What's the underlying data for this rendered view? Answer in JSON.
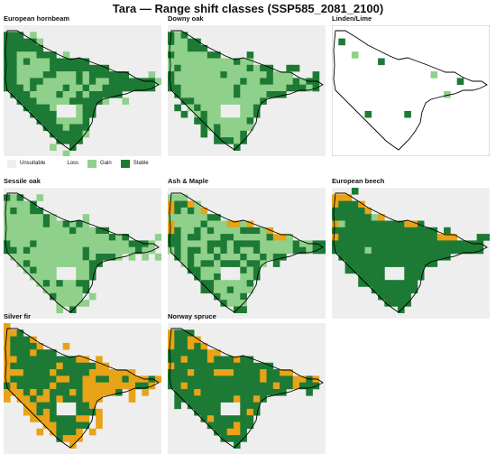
{
  "title": "Tara — Range shift classes (SSP585_2081_2100)",
  "colors": {
    "unsuitable": "#eeeeee",
    "loss": "#e8a317",
    "gain": "#8fd08a",
    "stable": "#1d7a35",
    "border": "#000000"
  },
  "legend": [
    {
      "label": "Unsuitable",
      "color_key": "unsuitable"
    },
    {
      "label": "Loss",
      "color_key": "loss"
    },
    {
      "label": "Gain",
      "color_key": "gain"
    },
    {
      "label": "Stable",
      "color_key": "stable"
    }
  ],
  "panels": [
    {
      "name": "European hornbeam",
      "pattern": "hornbeam"
    },
    {
      "name": "Downy oak",
      "pattern": "downy"
    },
    {
      "name": "Linden/Lime",
      "pattern": "linden"
    },
    {
      "name": "Sessile oak",
      "pattern": "sessile"
    },
    {
      "name": "Ash & Maple",
      "pattern": "ash"
    },
    {
      "name": "European beech",
      "pattern": "beech"
    },
    {
      "name": "Silver fir",
      "pattern": "fir"
    },
    {
      "name": "Norway spruce",
      "pattern": "spruce"
    }
  ]
}
